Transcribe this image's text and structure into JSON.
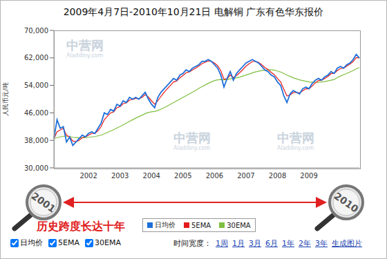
{
  "chart_data": {
    "type": "line",
    "title": "2009年4月7日-2010年10月21日 电解铜 广东有色华东报价",
    "y_label": "人民币元/吨",
    "categories": [
      null,
      null,
      null,
      null,
      null,
      null,
      null,
      null,
      null,
      null,
      null,
      "2002",
      null,
      null,
      null,
      null,
      null,
      null,
      null,
      null,
      null,
      "2003",
      null,
      null,
      null,
      null,
      null,
      null,
      null,
      null,
      null,
      "2004",
      null,
      null,
      null,
      null,
      null,
      null,
      null,
      null,
      null,
      "2005",
      null,
      null,
      null,
      null,
      null,
      null,
      null,
      null,
      null,
      "2006",
      null,
      null,
      null,
      null,
      null,
      null,
      null,
      null,
      null,
      "2007",
      null,
      null,
      null,
      null,
      null,
      null,
      null,
      null,
      null,
      "2008",
      null,
      null,
      null,
      null,
      null,
      null,
      null,
      null,
      null,
      "2009",
      null,
      null,
      null,
      null,
      null,
      null,
      null,
      null,
      null,
      null,
      null,
      null,
      null,
      null,
      null,
      null
    ],
    "series": [
      {
        "name": "日均价",
        "color": "#1e6fd9",
        "values": [
          38500,
          44000,
          41500,
          42000,
          37500,
          39000,
          36500,
          37500,
          38500,
          39500,
          39000,
          40000,
          40500,
          40000,
          41500,
          43000,
          46000,
          45500,
          47000,
          46500,
          48500,
          48000,
          49500,
          49000,
          50500,
          50000,
          50500,
          50000,
          51000,
          52000,
          50000,
          48500,
          47500,
          50500,
          52000,
          53000,
          54000,
          55000,
          56000,
          55500,
          57000,
          57500,
          58500,
          58000,
          59000,
          59500,
          60000,
          61000,
          61000,
          61500,
          61000,
          60000,
          59000,
          57000,
          53500,
          56000,
          58000,
          55500,
          57500,
          58500,
          59500,
          60500,
          61000,
          61500,
          61000,
          60500,
          59500,
          58500,
          58000,
          57000,
          56500,
          55000,
          54000,
          51000,
          49000,
          51500,
          52500,
          52000,
          51500,
          53000,
          53500,
          53000,
          54500,
          55500,
          56000,
          55500,
          56500,
          57000,
          58000,
          57500,
          59000,
          59500,
          59000,
          60000,
          60500,
          61500,
          63000,
          62000
        ]
      },
      {
        "name": "5EMA",
        "color": "#e41a1c",
        "values": [
          38500,
          40500,
          41000,
          41500,
          39500,
          39000,
          37800,
          37600,
          38000,
          38800,
          39000,
          39500,
          40000,
          40000,
          40800,
          42000,
          44000,
          45000,
          46000,
          46300,
          47500,
          47800,
          48700,
          48900,
          49700,
          49900,
          50200,
          50100,
          50500,
          51300,
          50600,
          49500,
          48500,
          49500,
          50800,
          52000,
          53000,
          54000,
          55000,
          55300,
          56200,
          56900,
          57700,
          57900,
          58500,
          59000,
          59600,
          60300,
          60700,
          61100,
          61000,
          60500,
          59700,
          58300,
          55800,
          55900,
          57000,
          56300,
          56900,
          57700,
          58600,
          59600,
          60300,
          60900,
          61000,
          60700,
          60000,
          59200,
          58600,
          57800,
          57100,
          56000,
          55000,
          52900,
          50900,
          51200,
          51900,
          52000,
          51800,
          52400,
          53000,
          53000,
          53800,
          54700,
          55400,
          55500,
          56000,
          56600,
          57400,
          57500,
          58300,
          58900,
          59000,
          59600,
          60200,
          60900,
          62100,
          62000
        ]
      },
      {
        "name": "30EMA",
        "color": "#7fbf3f",
        "values": [
          38500,
          38800,
          39000,
          39200,
          39200,
          39100,
          38900,
          38800,
          38700,
          38700,
          38800,
          38900,
          39000,
          39100,
          39300,
          39500,
          39900,
          40300,
          40700,
          41100,
          41600,
          42000,
          42500,
          43000,
          43500,
          44000,
          44500,
          44900,
          45300,
          45800,
          46100,
          46300,
          46400,
          46700,
          47100,
          47500,
          48000,
          48500,
          49000,
          49500,
          50000,
          50500,
          51000,
          51500,
          52000,
          52500,
          53100,
          53600,
          54100,
          54600,
          55000,
          55400,
          55600,
          55700,
          55600,
          55700,
          55900,
          56000,
          56200,
          56400,
          56700,
          57000,
          57300,
          57600,
          57900,
          58100,
          58300,
          58400,
          58500,
          58500,
          58400,
          58200,
          57900,
          57500,
          57000,
          56600,
          56200,
          55900,
          55600,
          55400,
          55200,
          55000,
          54900,
          54900,
          54900,
          55000,
          55100,
          55300,
          55500,
          55700,
          56300,
          56700,
          57100,
          57500,
          57900,
          58300,
          58800,
          59200
        ]
      }
    ],
    "ylim": [
      30000,
      70000
    ],
    "yticks": [
      {
        "value": 30000,
        "label": "30,000"
      },
      {
        "value": 38000,
        "label": "38,000"
      },
      {
        "value": 46000,
        "label": "46,000"
      },
      {
        "value": 54000,
        "label": "54,000"
      },
      {
        "value": 62000,
        "label": "62,000"
      },
      {
        "value": 70000,
        "label": "70,000"
      }
    ],
    "grid": false,
    "legend": "bottom",
    "annotations": {
      "magnifier_left": "2001",
      "magnifier_right": "2010",
      "caption": "历史跨度长达十年",
      "watermark": "中营网",
      "watermark_sub": "Aladdiny.com"
    },
    "controls": {
      "checkboxes": [
        "日均价",
        "5EMA",
        "30EMA"
      ],
      "time_label": "时间宽度：",
      "links": [
        "1周",
        "1月",
        "3月",
        "6月",
        "1年",
        "2年",
        "3年"
      ],
      "action": "生成图片"
    }
  }
}
